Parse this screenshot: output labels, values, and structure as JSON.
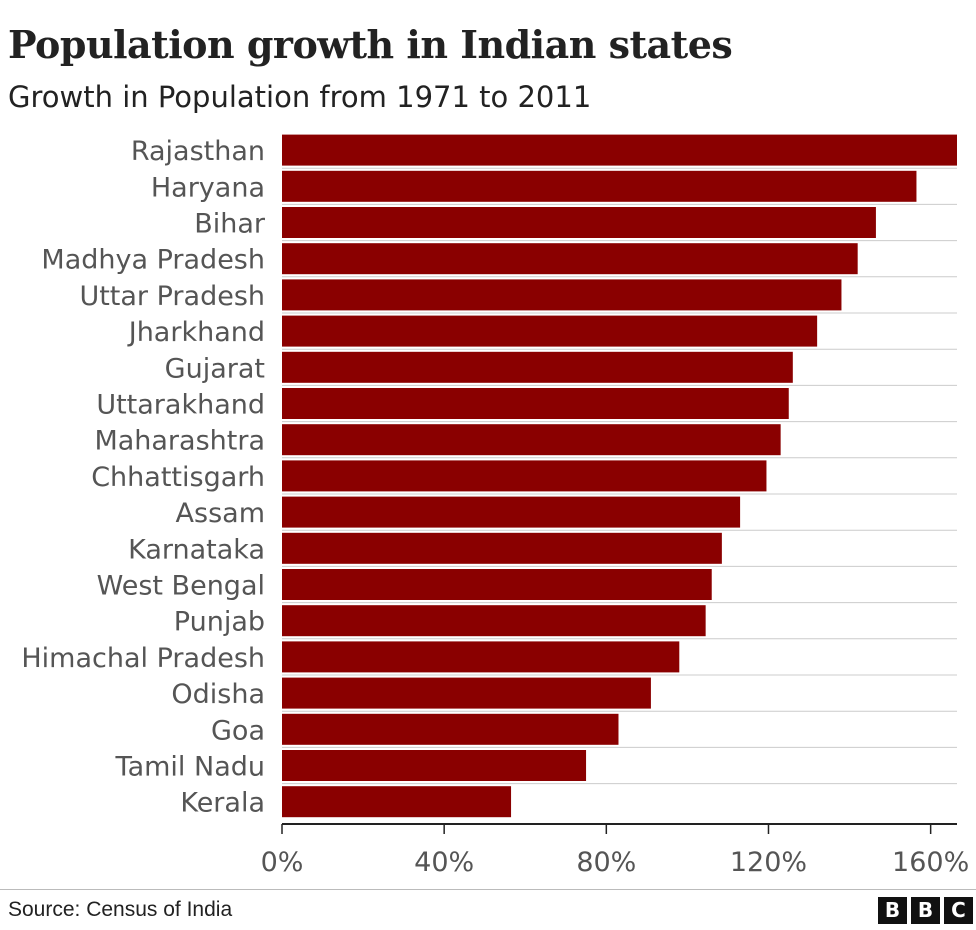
{
  "title": "Population growth in Indian states",
  "subtitle": "Growth in Population from 1971 to 2011",
  "source": "Source: Census of India",
  "logo": [
    "B",
    "B",
    "C"
  ],
  "colors": {
    "bar": "#8a0000",
    "grid": "#cccccc",
    "axis": "#222222"
  },
  "chart_data": {
    "type": "bar",
    "orientation": "horizontal",
    "title": "Population growth in Indian states",
    "subtitle": "Growth in Population from 1971 to 2011",
    "categories": [
      "Rajasthan",
      "Haryana",
      "Bihar",
      "Madhya Pradesh",
      "Uttar Pradesh",
      "Jharkhand",
      "Gujarat",
      "Uttarakhand",
      "Maharashtra",
      "Chhattisgarh",
      "Assam",
      "Karnataka",
      "West Bengal",
      "Punjab",
      "Himachal Pradesh",
      "Odisha",
      "Goa",
      "Tamil Nadu",
      "Kerala"
    ],
    "values": [
      166.5,
      156.5,
      146.5,
      142,
      138,
      132,
      126,
      125,
      123,
      119.5,
      113,
      108.5,
      106,
      104.5,
      98,
      91,
      83,
      75,
      56.5
    ],
    "unit": "%",
    "xlim": [
      0,
      166.5
    ],
    "xticks": [
      0,
      40,
      80,
      120,
      160
    ],
    "xtick_labels": [
      "0%",
      "40%",
      "80%",
      "120%",
      "160%"
    ],
    "xlabel": "",
    "ylabel": "",
    "grid": "horizontal gridlines between bars",
    "legend": "none"
  }
}
